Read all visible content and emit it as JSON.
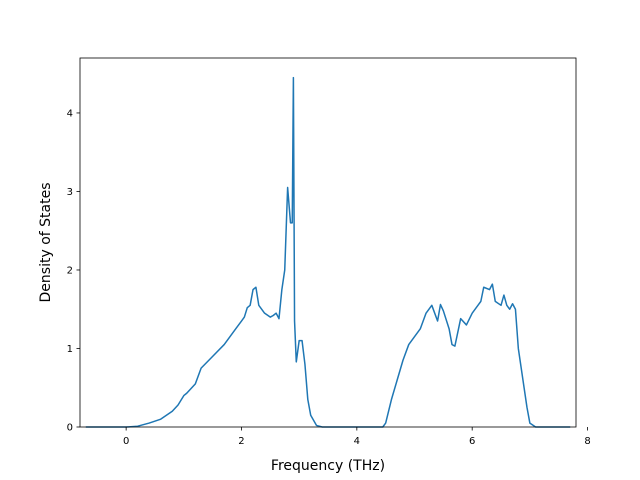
{
  "chart_data": {
    "type": "line",
    "title": "",
    "xlabel": "Frequency (THz)",
    "ylabel": "Density of States",
    "xlim": [
      -0.8,
      7.8
    ],
    "ylim": [
      0,
      4.7
    ],
    "xticks": [
      0,
      2,
      4,
      6,
      8
    ],
    "xtick_labels": [
      "0",
      "2",
      "4",
      "6",
      "8"
    ],
    "yticks": [
      0,
      1,
      2,
      3,
      4
    ],
    "ytick_labels": [
      "0",
      "1",
      "2",
      "3",
      "4"
    ],
    "grid": false,
    "colors": {
      "line": "#1f77b4"
    },
    "series": [
      {
        "x": [
          -0.7,
          0.0,
          0.2,
          0.4,
          0.6,
          0.8,
          0.9,
          1.0,
          1.05,
          1.2,
          1.3,
          1.5,
          1.7,
          1.9,
          2.0,
          2.05,
          2.1,
          2.15,
          2.2,
          2.25,
          2.3,
          2.4,
          2.5,
          2.55,
          2.6,
          2.65,
          2.7,
          2.75,
          2.8,
          2.85,
          2.88,
          2.9,
          2.92,
          2.95,
          3.0,
          3.05,
          3.1,
          3.15,
          3.2,
          3.3,
          3.4,
          3.5,
          4.0,
          4.45,
          4.5,
          4.6,
          4.7,
          4.8,
          4.9,
          5.0,
          5.1,
          5.2,
          5.3,
          5.4,
          5.45,
          5.5,
          5.6,
          5.65,
          5.7,
          5.8,
          5.9,
          6.0,
          6.1,
          6.15,
          6.2,
          6.3,
          6.35,
          6.4,
          6.5,
          6.55,
          6.6,
          6.65,
          6.7,
          6.75,
          6.8,
          6.9,
          6.95,
          7.0,
          7.1,
          7.7
        ],
        "y": [
          0.0,
          0.0,
          0.01,
          0.05,
          0.1,
          0.2,
          0.28,
          0.4,
          0.43,
          0.55,
          0.75,
          0.9,
          1.05,
          1.25,
          1.35,
          1.4,
          1.52,
          1.55,
          1.75,
          1.78,
          1.55,
          1.45,
          1.4,
          1.42,
          1.45,
          1.38,
          1.75,
          2.0,
          3.05,
          2.6,
          2.6,
          4.45,
          1.35,
          0.83,
          1.1,
          1.1,
          0.8,
          0.35,
          0.15,
          0.02,
          0.0,
          0.0,
          0.0,
          0.0,
          0.05,
          0.35,
          0.6,
          0.85,
          1.05,
          1.15,
          1.25,
          1.45,
          1.55,
          1.35,
          1.56,
          1.48,
          1.25,
          1.05,
          1.03,
          1.38,
          1.3,
          1.45,
          1.55,
          1.6,
          1.78,
          1.75,
          1.82,
          1.6,
          1.55,
          1.68,
          1.55,
          1.5,
          1.57,
          1.5,
          1.0,
          0.5,
          0.25,
          0.05,
          0.0,
          0.0
        ]
      }
    ]
  }
}
